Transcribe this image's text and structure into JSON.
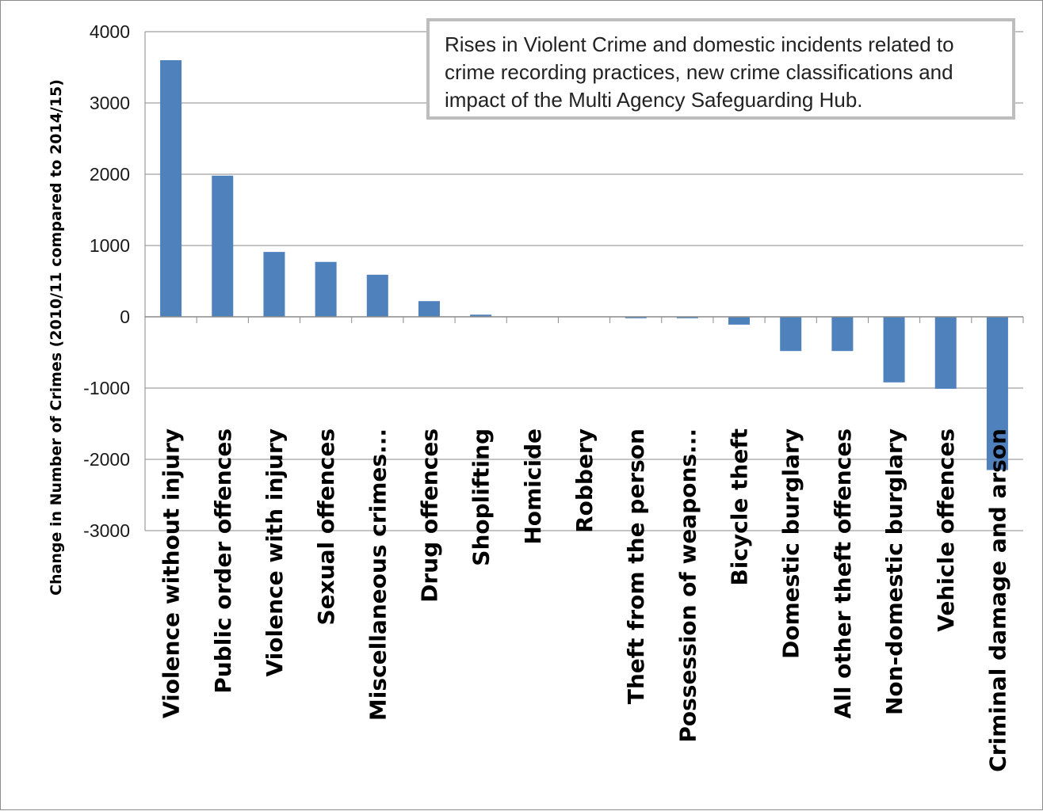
{
  "chart_data": {
    "type": "bar",
    "ylabel": "Change in Number of Crimes (2010/11 compared to 2014/15)",
    "ylim": [
      -3000,
      4000
    ],
    "yticks": [
      -3000,
      -2000,
      -1000,
      0,
      1000,
      2000,
      3000,
      4000
    ],
    "grid": true,
    "bar_color": "#4F81BD",
    "categories": [
      "Violence without injury",
      "Public order offences",
      "Violence with injury",
      "Sexual offences",
      "Miscellaneous crimes...",
      "Drug offences",
      "Shoplifting",
      "Homicide",
      "Robbery",
      "Theft from the person",
      "Possession of weapons...",
      "Bicycle theft",
      "Domestic burglary",
      "All other theft offences",
      "Non-domestic burglary",
      "Vehicle offences",
      "Criminal damage and arson"
    ],
    "values": [
      3600,
      1980,
      910,
      770,
      590,
      220,
      30,
      0,
      0,
      -20,
      -20,
      -110,
      -480,
      -480,
      -920,
      -1010,
      -2150
    ],
    "annotation": "Rises in Violent Crime and domestic incidents related to crime recording practices, new crime classifications and impact of the Multi Agency Safeguarding Hub."
  }
}
